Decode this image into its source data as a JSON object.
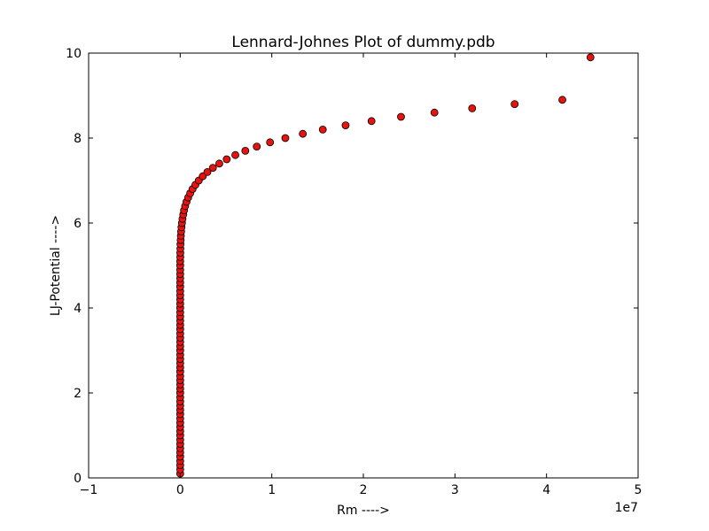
{
  "chart_data": {
    "type": "scatter",
    "title": "Lennard-Johnes Plot of dummy.pdb",
    "xlabel": "Rm ---->",
    "ylabel": "LJ-Potential ---->",
    "x_offset_label": "1e7",
    "xlim": [
      -1,
      5
    ],
    "ylim": [
      0,
      10
    ],
    "x_ticks": [
      -1,
      0,
      1,
      2,
      3,
      4,
      5
    ],
    "x_tick_labels": [
      "−1",
      "0",
      "1",
      "2",
      "3",
      "4",
      "5"
    ],
    "y_ticks": [
      0,
      2,
      4,
      6,
      8,
      10
    ],
    "y_tick_labels": [
      "0",
      "2",
      "4",
      "6",
      "8",
      "10"
    ],
    "grid": false,
    "marker_color": "#e8120f",
    "marker_edge": "#000000",
    "series": [
      {
        "x": [
          0.0,
          0.0,
          0.0,
          0.0,
          0.0,
          0.0,
          0.0,
          0.0,
          0.0,
          0.0,
          0.0,
          0.0,
          0.0,
          0.0,
          0.0,
          0.0,
          0.0,
          0.0,
          0.0,
          0.0,
          0.0,
          0.0,
          0.0,
          0.0,
          0.0,
          0.0,
          0.0,
          0.0,
          0.0,
          0.0,
          0.0,
          0.0,
          0.0,
          0.0,
          0.0,
          0.0,
          0.0,
          0.0,
          0.0,
          0.0,
          0.0,
          0.0,
          0.0,
          0.0,
          0.0,
          0.0,
          0.0,
          0.0,
          0.0,
          0.0,
          0.0,
          0.001,
          0.001,
          0.002,
          0.003,
          0.005,
          0.007,
          0.01,
          0.014,
          0.019,
          0.025,
          0.033,
          0.042,
          0.054,
          0.069,
          0.087,
          0.109,
          0.135,
          0.166,
          0.203,
          0.246,
          0.297,
          0.357,
          0.427,
          0.508,
          0.602,
          0.711,
          0.836,
          0.981,
          1.148,
          1.339,
          1.557,
          1.806,
          2.089,
          2.411,
          2.776,
          3.188,
          3.652,
          4.173,
          4.48
        ],
        "y": [
          0.1,
          0.2,
          0.3,
          0.4,
          0.5,
          0.6,
          0.7,
          0.8,
          0.9,
          1.0,
          1.1,
          1.2,
          1.3,
          1.4,
          1.5,
          1.6,
          1.7,
          1.8,
          1.9,
          2.0,
          2.1,
          2.2,
          2.3,
          2.4,
          2.5,
          2.6,
          2.7,
          2.8,
          2.9,
          3.0,
          3.1,
          3.2,
          3.3,
          3.4,
          3.5,
          3.6,
          3.7,
          3.8,
          3.9,
          4.0,
          4.1,
          4.2,
          4.3,
          4.4,
          4.5,
          4.6,
          4.7,
          4.8,
          4.9,
          5.0,
          5.1,
          5.2,
          5.3,
          5.4,
          5.5,
          5.6,
          5.7,
          5.8,
          5.9,
          6.0,
          6.1,
          6.2,
          6.3,
          6.4,
          6.5,
          6.6,
          6.7,
          6.8,
          6.9,
          7.0,
          7.1,
          7.2,
          7.3,
          7.4,
          7.5,
          7.6,
          7.7,
          7.8,
          7.9,
          8.0,
          8.1,
          8.2,
          8.3,
          8.4,
          8.5,
          8.6,
          8.7,
          8.8,
          8.9,
          9.9
        ]
      }
    ]
  }
}
